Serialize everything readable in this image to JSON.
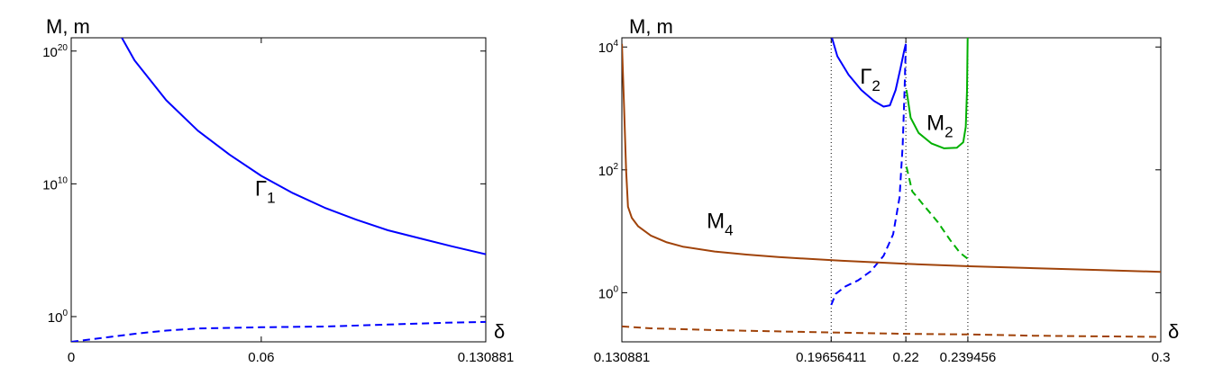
{
  "chart_data": [
    {
      "type": "line",
      "title": "",
      "ylabel": "M, m",
      "xlabel": "δ",
      "yscale": "log",
      "xlim": [
        0,
        0.130881
      ],
      "ylim_log10": [
        -1.9,
        21
      ],
      "xticks": [
        {
          "value": 0,
          "label": "0"
        },
        {
          "value": 0.06,
          "label": "0.06"
        },
        {
          "value": 0.130881,
          "label": "0.130881"
        }
      ],
      "yticks": [
        {
          "log10": 0,
          "base": "10",
          "exp": "0"
        },
        {
          "log10": 10,
          "base": "10",
          "exp": "10"
        },
        {
          "log10": 20,
          "base": "10",
          "exp": "20"
        }
      ],
      "grid": false,
      "series": [
        {
          "color": "#0000ff",
          "dash": "solid",
          "points": [
            [
              0.016,
              21
            ],
            [
              0.02,
              19.3
            ],
            [
              0.03,
              16.3
            ],
            [
              0.04,
              14
            ],
            [
              0.05,
              12.2
            ],
            [
              0.06,
              10.6
            ],
            [
              0.07,
              9.3
            ],
            [
              0.08,
              8.2
            ],
            [
              0.09,
              7.3
            ],
            [
              0.1,
              6.5
            ],
            [
              0.11,
              5.9
            ],
            [
              0.12,
              5.3
            ],
            [
              0.130881,
              4.7
            ]
          ]
        },
        {
          "color": "#0000ff",
          "dash": "dashed",
          "points": [
            [
              0,
              -1.9
            ],
            [
              0.01,
              -1.6
            ],
            [
              0.02,
              -1.3
            ],
            [
              0.03,
              -1.05
            ],
            [
              0.04,
              -0.9
            ],
            [
              0.06,
              -0.8
            ],
            [
              0.08,
              -0.75
            ],
            [
              0.1,
              -0.6
            ],
            [
              0.12,
              -0.45
            ],
            [
              0.130881,
              -0.4
            ]
          ]
        }
      ],
      "annotations": [
        {
          "text": "Γ",
          "sub": "1",
          "x": 0.058,
          "y_log10": 9.1
        }
      ]
    },
    {
      "type": "line",
      "title": "",
      "ylabel": "M, m",
      "xlabel": "δ",
      "yscale": "log",
      "xlim": [
        0.130881,
        0.3
      ],
      "ylim_log10": [
        -0.8,
        4.15
      ],
      "xticks": [
        {
          "value": 0.130881,
          "label": "0.130881"
        },
        {
          "value": 0.19656411,
          "label": "0.19656411"
        },
        {
          "value": 0.22,
          "label": "0.22"
        },
        {
          "value": 0.239456,
          "label": "0.239456"
        },
        {
          "value": 0.3,
          "label": "0.3"
        }
      ],
      "yticks": [
        {
          "log10": 0,
          "base": "10",
          "exp": "0"
        },
        {
          "log10": 2,
          "base": "10",
          "exp": "2"
        },
        {
          "log10": 4,
          "base": "10",
          "exp": "4"
        }
      ],
      "vlines": [
        0.130881,
        0.19656411,
        0.22,
        0.239456
      ],
      "grid": false,
      "series": [
        {
          "color": "#0000ff",
          "dash": "solid",
          "points": [
            [
              0.1968,
              4.15
            ],
            [
              0.1985,
              3.85
            ],
            [
              0.202,
              3.55
            ],
            [
              0.206,
              3.3
            ],
            [
              0.21,
              3.12
            ],
            [
              0.213,
              3.03
            ],
            [
              0.215,
              3.05
            ],
            [
              0.2168,
              3.3
            ],
            [
              0.2183,
              3.65
            ],
            [
              0.2195,
              3.95
            ],
            [
              0.22,
              4.05
            ]
          ]
        },
        {
          "color": "#0000ff",
          "dash": "dashed",
          "points": [
            [
              0.19656411,
              -0.2
            ],
            [
              0.198,
              -0.02
            ],
            [
              0.201,
              0.1
            ],
            [
              0.205,
              0.2
            ],
            [
              0.209,
              0.35
            ],
            [
              0.213,
              0.6
            ],
            [
              0.216,
              0.95
            ],
            [
              0.218,
              1.55
            ],
            [
              0.219,
              2.4
            ],
            [
              0.2196,
              3.3
            ],
            [
              0.22,
              4.05
            ]
          ]
        },
        {
          "color": "#00b000",
          "dash": "solid",
          "points": [
            [
              0.2202,
              3.3
            ],
            [
              0.2215,
              2.85
            ],
            [
              0.224,
              2.6
            ],
            [
              0.228,
              2.43
            ],
            [
              0.232,
              2.35
            ],
            [
              0.236,
              2.36
            ],
            [
              0.238,
              2.45
            ],
            [
              0.2388,
              2.7
            ],
            [
              0.2392,
              3.3
            ],
            [
              0.2394,
              4.15
            ]
          ]
        },
        {
          "color": "#00b000",
          "dash": "dashed",
          "points": [
            [
              0.2202,
              2.05
            ],
            [
              0.222,
              1.65
            ],
            [
              0.226,
              1.4
            ],
            [
              0.23,
              1.15
            ],
            [
              0.234,
              0.85
            ],
            [
              0.237,
              0.65
            ],
            [
              0.239456,
              0.55
            ]
          ]
        },
        {
          "color": "#a0430a",
          "dash": "solid",
          "points": [
            [
              0.1309,
              4.05
            ],
            [
              0.1316,
              3.0
            ],
            [
              0.1322,
              2.0
            ],
            [
              0.1328,
              1.4
            ],
            [
              0.134,
              1.22
            ],
            [
              0.136,
              1.08
            ],
            [
              0.14,
              0.93
            ],
            [
              0.145,
              0.82
            ],
            [
              0.15,
              0.75
            ],
            [
              0.16,
              0.67
            ],
            [
              0.17,
              0.62
            ],
            [
              0.18,
              0.58
            ],
            [
              0.2,
              0.52
            ],
            [
              0.22,
              0.47
            ],
            [
              0.24,
              0.43
            ],
            [
              0.26,
              0.4
            ],
            [
              0.28,
              0.37
            ],
            [
              0.3,
              0.34
            ]
          ]
        },
        {
          "color": "#a0430a",
          "dash": "dashed",
          "points": [
            [
              0.1309,
              -0.55
            ],
            [
              0.14,
              -0.58
            ],
            [
              0.16,
              -0.61
            ],
            [
              0.18,
              -0.63
            ],
            [
              0.2,
              -0.65
            ],
            [
              0.22,
              -0.67
            ],
            [
              0.24,
              -0.68
            ],
            [
              0.26,
              -0.7
            ],
            [
              0.28,
              -0.71
            ],
            [
              0.3,
              -0.72
            ]
          ]
        }
      ],
      "annotations": [
        {
          "text": "Γ",
          "sub": "2",
          "x": 0.2056,
          "y_log10": 3.4
        },
        {
          "text": "M",
          "sub": "2",
          "x": 0.2265,
          "y_log10": 2.65
        },
        {
          "text": "M",
          "sub": "4",
          "x": 0.1575,
          "y_log10": 1.05
        }
      ]
    }
  ]
}
